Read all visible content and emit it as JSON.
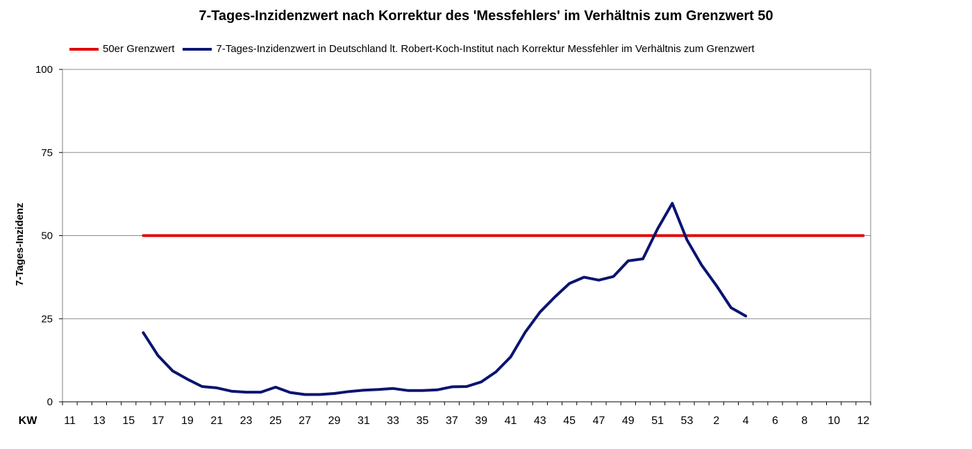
{
  "chart_data": {
    "type": "line",
    "title": "7-Tages-Inzidenzwert nach Korrektur des 'Messfehlers' im Verhältnis zum Grenzwert 50",
    "xlabel": "KW",
    "ylabel": "7-Tages-Inzidenz",
    "ylim": [
      0,
      100
    ],
    "yticks": [
      0,
      25,
      50,
      75,
      100
    ],
    "grid": true,
    "legend_position": "top",
    "x": [
      "11",
      "12",
      "13",
      "14",
      "15",
      "16",
      "17",
      "18",
      "19",
      "20",
      "21",
      "22",
      "23",
      "24",
      "25",
      "26",
      "27",
      "28",
      "29",
      "30",
      "31",
      "32",
      "33",
      "34",
      "35",
      "36",
      "37",
      "38",
      "39",
      "40",
      "41",
      "42",
      "43",
      "44",
      "45",
      "46",
      "47",
      "48",
      "49",
      "50",
      "51",
      "52",
      "53",
      "1",
      "2",
      "3",
      "4",
      "5",
      "6",
      "7",
      "8",
      "9",
      "10",
      "11",
      "12"
    ],
    "xtick_labels": [
      "11",
      "13",
      "15",
      "17",
      "19",
      "21",
      "23",
      "25",
      "27",
      "29",
      "31",
      "33",
      "35",
      "37",
      "39",
      "41",
      "43",
      "45",
      "47",
      "49",
      "51",
      "53",
      "2",
      "4",
      "6",
      "8",
      "10",
      "12"
    ],
    "series": [
      {
        "name": "50er Grenzwert",
        "color": "#e00000",
        "values": [
          null,
          null,
          null,
          null,
          null,
          50,
          50,
          50,
          50,
          50,
          50,
          50,
          50,
          50,
          50,
          50,
          50,
          50,
          50,
          50,
          50,
          50,
          50,
          50,
          50,
          50,
          50,
          50,
          50,
          50,
          50,
          50,
          50,
          50,
          50,
          50,
          50,
          50,
          50,
          50,
          50,
          50,
          50,
          50,
          50,
          50,
          50,
          50,
          50,
          50,
          50,
          50,
          50,
          50,
          50
        ]
      },
      {
        "name": "7-Tages-Inzidenzwert in Deutschland lt. Robert-Koch-Institut nach Korrektur Messfehler im Verhältnis zum Grenzwert",
        "color": "#0a1470",
        "values": [
          null,
          null,
          null,
          null,
          null,
          20.8,
          13.9,
          9.3,
          6.8,
          4.6,
          4.2,
          3.2,
          2.9,
          2.9,
          4.4,
          2.8,
          2.2,
          2.2,
          2.5,
          3.1,
          3.5,
          3.7,
          4.0,
          3.4,
          3.4,
          3.6,
          4.5,
          4.6,
          6.0,
          9.0,
          13.5,
          21.0,
          27.0,
          31.5,
          35.6,
          37.5,
          36.6,
          37.7,
          42.4,
          43.0,
          52.0,
          59.7,
          48.7,
          41.1,
          35.0,
          28.3,
          25.8,
          null,
          null,
          null,
          null,
          null,
          null,
          null,
          null
        ]
      }
    ]
  }
}
